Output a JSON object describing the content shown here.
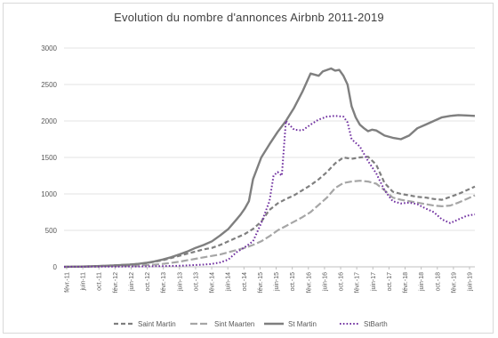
{
  "chart_data": {
    "type": "line",
    "title": "Evolution du nombre d'annonces Airbnb 2011-2019",
    "xlabel": "",
    "ylabel": "",
    "ylim": [
      0,
      3000
    ],
    "yticks": [
      0,
      500,
      1000,
      1500,
      2000,
      2500,
      3000
    ],
    "grid": true,
    "legend": "bottom",
    "categories": [
      "févr.-11",
      "juin-11",
      "oct.-11",
      "févr.-12",
      "juin-12",
      "oct.-12",
      "févr.-13",
      "juin-13",
      "oct.-13",
      "févr.-14",
      "juin-14",
      "oct.-14",
      "févr.-15",
      "juin-15",
      "oct.-15",
      "févr.-16",
      "juin-16",
      "oct.-16",
      "févr.-17",
      "juin-17",
      "oct.-17",
      "févr.-18",
      "juin-18",
      "oct.-18",
      "févr.-19",
      "juin-19"
    ],
    "series": [
      {
        "name": "Saint Martin",
        "color": "#7f7f7f",
        "dash": "5,3",
        "width": 2.2,
        "x": [
          0,
          2,
          4,
          6,
          8,
          10,
          12,
          14,
          16,
          18,
          20,
          22,
          24,
          26,
          28,
          30,
          32,
          34,
          36,
          38,
          40,
          42,
          44,
          46,
          48,
          50,
          52,
          54,
          56,
          58,
          60,
          62,
          64,
          66,
          68,
          70,
          72,
          74,
          76,
          78,
          80,
          82,
          84,
          86,
          88,
          90,
          92,
          94,
          96,
          98,
          100
        ],
        "values": [
          0,
          2,
          4,
          6,
          10,
          15,
          20,
          25,
          30,
          40,
          50,
          70,
          90,
          120,
          150,
          180,
          210,
          240,
          260,
          300,
          350,
          400,
          450,
          520,
          620,
          780,
          870,
          930,
          980,
          1050,
          1120,
          1200,
          1300,
          1420,
          1500,
          1480,
          1500,
          1510,
          1400,
          1150,
          1030,
          1000,
          980,
          960,
          950,
          930,
          920,
          960,
          1000,
          1050,
          1100
        ]
      },
      {
        "name": "Sint Maarten",
        "color": "#a6a6a6",
        "dash": "8,3",
        "width": 2.2,
        "x": [
          0,
          2,
          4,
          6,
          8,
          10,
          12,
          14,
          16,
          18,
          20,
          22,
          24,
          26,
          28,
          30,
          32,
          34,
          36,
          38,
          40,
          42,
          44,
          46,
          48,
          50,
          52,
          54,
          56,
          58,
          60,
          62,
          64,
          66,
          68,
          70,
          72,
          74,
          76,
          78,
          80,
          82,
          84,
          86,
          88,
          90,
          92,
          94,
          96,
          98,
          100
        ],
        "values": [
          0,
          1,
          2,
          3,
          5,
          8,
          10,
          12,
          15,
          20,
          25,
          30,
          40,
          55,
          70,
          90,
          110,
          130,
          150,
          170,
          200,
          230,
          260,
          300,
          350,
          420,
          500,
          560,
          620,
          680,
          750,
          850,
          950,
          1080,
          1150,
          1170,
          1180,
          1170,
          1140,
          1050,
          950,
          920,
          900,
          880,
          860,
          840,
          830,
          840,
          880,
          930,
          980
        ]
      },
      {
        "name": "St Martin",
        "color": "#7f7f7f",
        "dash": "",
        "width": 2.4,
        "x": [
          0,
          2,
          4,
          6,
          8,
          10,
          12,
          14,
          16,
          18,
          20,
          22,
          24,
          26,
          28,
          30,
          32,
          34,
          36,
          38,
          40,
          42,
          43,
          44,
          45,
          46,
          48,
          50,
          52,
          54,
          56,
          58,
          60,
          62,
          63,
          64,
          65,
          66,
          67,
          68,
          69,
          70,
          71,
          72,
          73,
          74,
          75,
          76,
          78,
          80,
          82,
          84,
          86,
          88,
          90,
          92,
          94,
          96,
          98,
          100
        ],
        "values": [
          0,
          2,
          4,
          6,
          10,
          15,
          20,
          25,
          30,
          40,
          55,
          75,
          100,
          130,
          170,
          210,
          260,
          300,
          350,
          430,
          520,
          650,
          720,
          800,
          900,
          1200,
          1500,
          1680,
          1850,
          2000,
          2180,
          2400,
          2650,
          2620,
          2680,
          2700,
          2720,
          2690,
          2700,
          2620,
          2500,
          2200,
          2050,
          1950,
          1900,
          1860,
          1880,
          1870,
          1800,
          1770,
          1750,
          1800,
          1900,
          1950,
          2000,
          2050,
          2070,
          2080,
          2075,
          2070
        ]
      },
      {
        "name": "StBarth",
        "color": "#7030a0",
        "dash": "1.6,2.2",
        "width": 2.0,
        "x": [
          0,
          2,
          4,
          6,
          8,
          10,
          12,
          14,
          16,
          18,
          20,
          22,
          24,
          26,
          28,
          30,
          32,
          34,
          36,
          38,
          40,
          42,
          44,
          46,
          48,
          50,
          51,
          52,
          53,
          54,
          56,
          58,
          60,
          62,
          64,
          66,
          68,
          69,
          70,
          72,
          74,
          76,
          78,
          80,
          82,
          84,
          86,
          88,
          90,
          92,
          94,
          96,
          98,
          100
        ],
        "values": [
          0,
          1,
          1,
          2,
          2,
          3,
          3,
          4,
          5,
          5,
          6,
          8,
          10,
          12,
          15,
          20,
          25,
          30,
          40,
          60,
          100,
          200,
          270,
          350,
          600,
          900,
          1250,
          1300,
          1250,
          2000,
          1880,
          1870,
          1950,
          2020,
          2060,
          2070,
          2060,
          1980,
          1750,
          1650,
          1450,
          1280,
          1050,
          900,
          870,
          880,
          860,
          800,
          750,
          650,
          600,
          650,
          700,
          720
        ]
      }
    ]
  }
}
